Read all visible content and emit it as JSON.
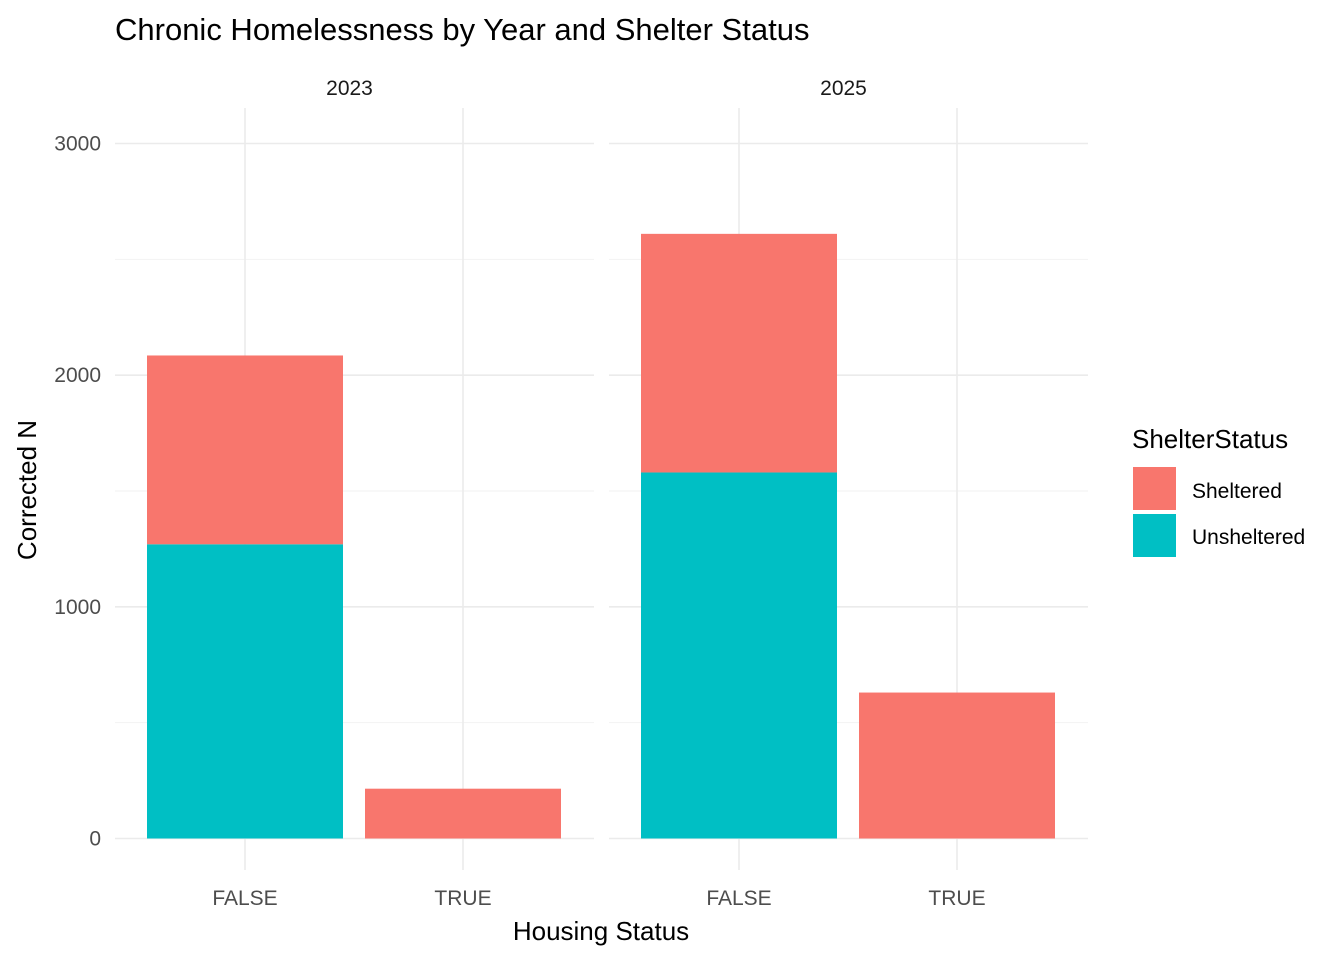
{
  "chart_data": {
    "type": "bar",
    "stacked": true,
    "title": "Chronic Homelessness by Year and Shelter Status",
    "xlabel": "Housing Status",
    "ylabel": "Corrected N",
    "ylim": [
      0,
      3000
    ],
    "yticks": [
      0,
      1000,
      2000,
      3000
    ],
    "categories": [
      "FALSE",
      "TRUE"
    ],
    "grid": true,
    "facets": [
      {
        "label": "2023",
        "series": [
          {
            "name": "Sheltered",
            "values": [
              815,
              215
            ]
          },
          {
            "name": "Unsheltered",
            "values": [
              1270,
              0
            ]
          }
        ]
      },
      {
        "label": "2025",
        "series": [
          {
            "name": "Sheltered",
            "values": [
              1030,
              630
            ]
          },
          {
            "name": "Unsheltered",
            "values": [
              1580,
              0
            ]
          }
        ]
      }
    ],
    "legend": {
      "title": "ShelterStatus",
      "position": "right",
      "items": [
        {
          "name": "Sheltered",
          "color": "#F8766D"
        },
        {
          "name": "Unsheltered",
          "color": "#00BFC4"
        }
      ]
    }
  }
}
